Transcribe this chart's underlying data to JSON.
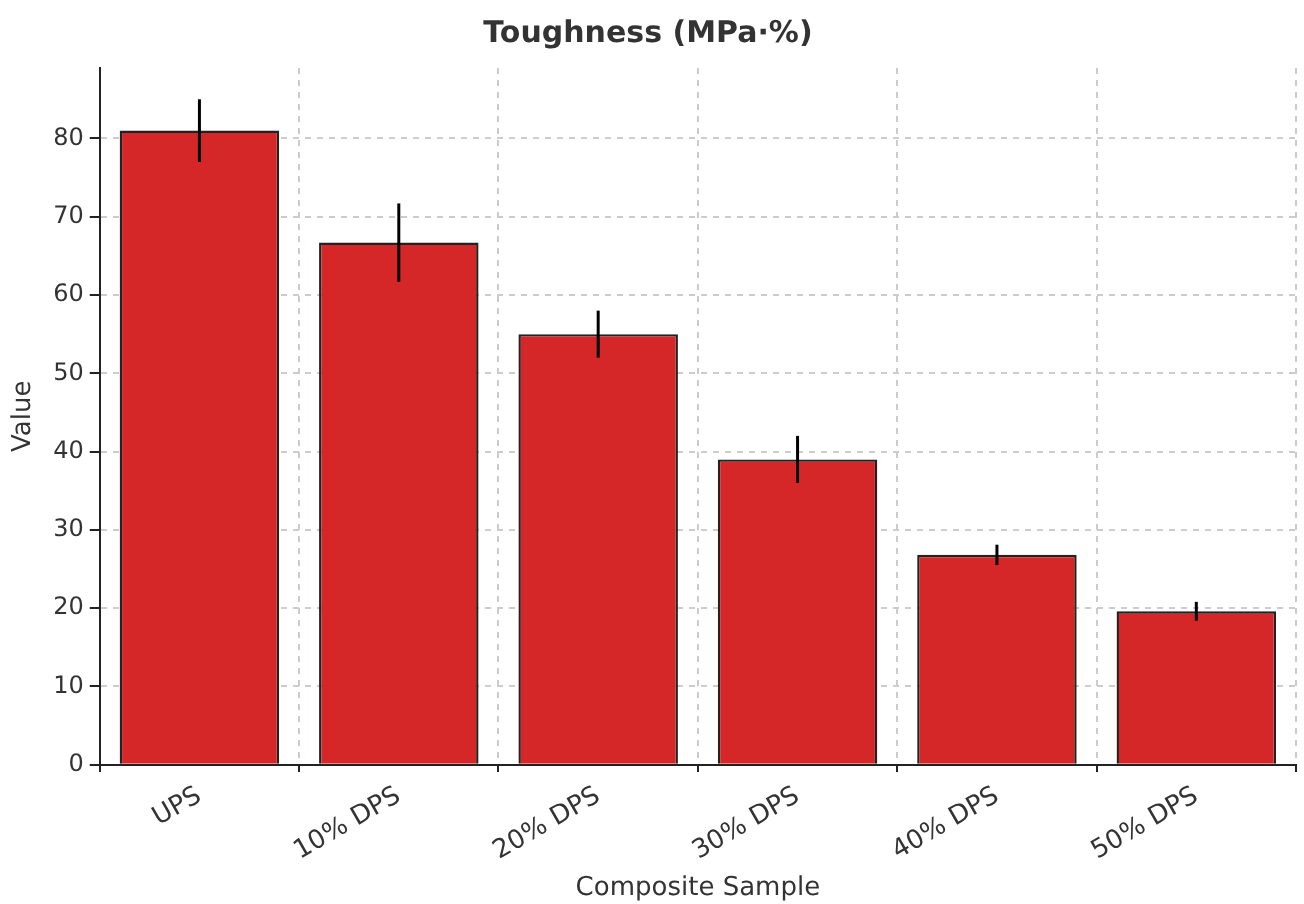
{
  "chart_data": {
    "type": "bar",
    "title": "Toughness (MPa·%)",
    "xlabel": "Composite Sample",
    "ylabel": "Value",
    "categories": [
      "UPS",
      "10% DPS",
      "20% DPS",
      "30% DPS",
      "40% DPS",
      "50% DPS"
    ],
    "values": [
      81,
      66.7,
      55,
      39,
      26.8,
      19.6
    ],
    "errors": [
      4,
      5,
      3,
      3,
      1.3,
      1.2
    ],
    "color": "#d62728",
    "ylim": [
      0,
      89
    ],
    "yticks": [
      0,
      10,
      20,
      30,
      40,
      50,
      60,
      70,
      80
    ],
    "grid": true,
    "legend": false
  }
}
